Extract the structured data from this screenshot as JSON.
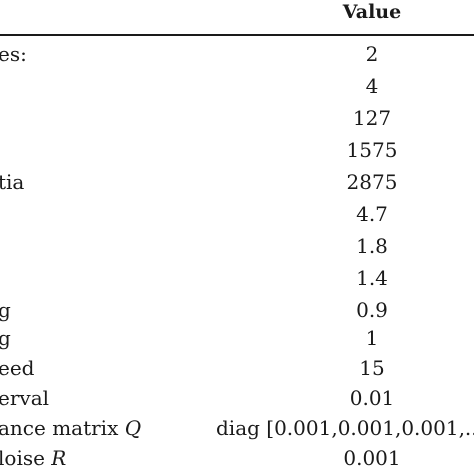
{
  "header": {
    "value_label": "Value"
  },
  "rows": [
    {
      "param": "es:",
      "value": "2"
    },
    {
      "param": "",
      "value": "4"
    },
    {
      "param": "",
      "value": "127"
    },
    {
      "param": "",
      "value": "1575"
    },
    {
      "param": "tia",
      "value": "2875"
    },
    {
      "param": "",
      "value": "4.7"
    },
    {
      "param": "",
      "value": "1.8"
    },
    {
      "param": "",
      "value": "1.4"
    },
    {
      "param": "g",
      "value": "0.9"
    },
    {
      "param": "g",
      "value": "1"
    },
    {
      "param": "eed",
      "value": "15"
    },
    {
      "param": "erval",
      "value": "0.01"
    },
    {
      "param": "ance matrix ",
      "param_symbol": "Q",
      "value": "diag [0.001,0.001,0.001,.."
    },
    {
      "param": "loise ",
      "param_symbol": "R",
      "value": "0.001"
    }
  ]
}
